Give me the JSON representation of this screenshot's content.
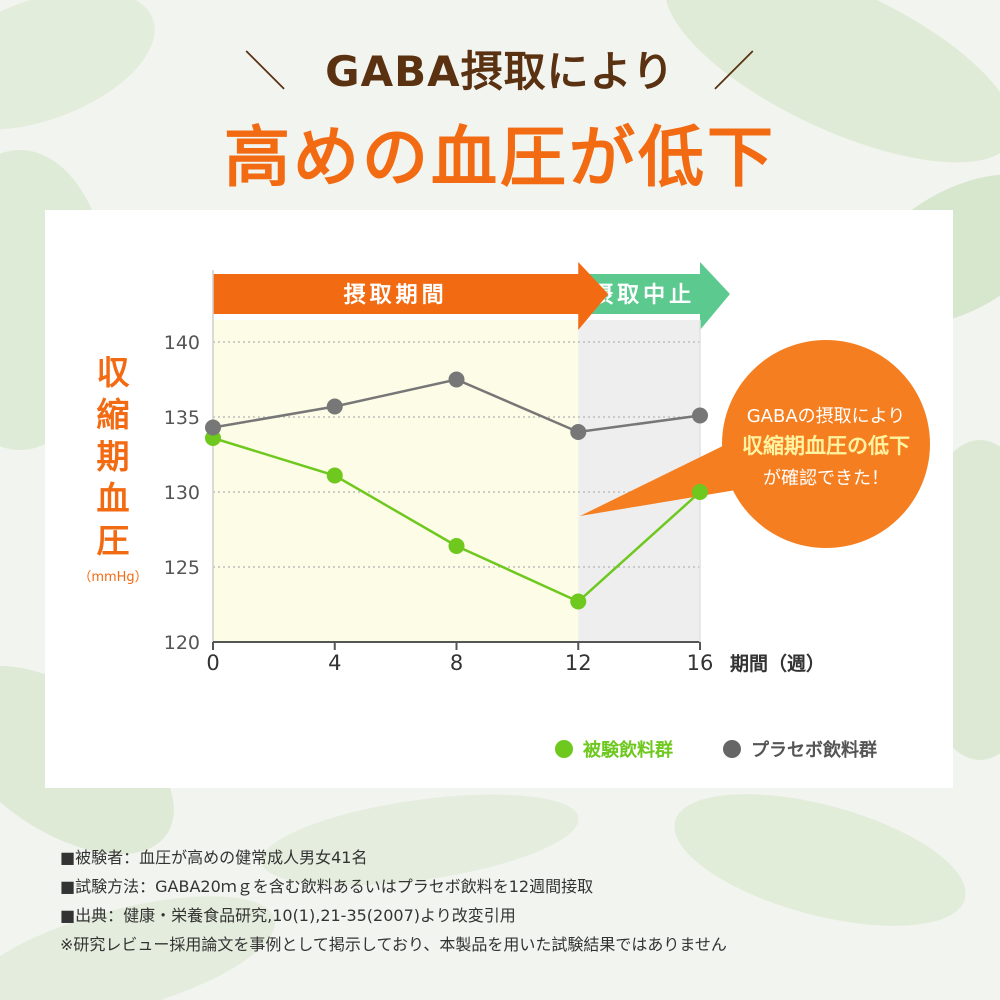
{
  "header": {
    "slash_left": "＼",
    "subtitle": "GABA摂取により",
    "slash_right": "／",
    "title": "高めの血圧が低下"
  },
  "chart_data": {
    "type": "line",
    "title": "",
    "ylabel": "収縮期血圧",
    "yunit": "（mmHg）",
    "xlabel": "期間（週）",
    "x": [
      0,
      4,
      8,
      12,
      16
    ],
    "xlim": [
      0,
      16
    ],
    "ylim": [
      120,
      140
    ],
    "yticks": [
      120,
      125,
      130,
      135,
      140
    ],
    "grid": "horizontal-dotted",
    "legend_position": "bottom-right",
    "phases": [
      {
        "label": "摂取期間",
        "from": 0,
        "to": 12,
        "color": "#f26a12",
        "shade": "#fdfce6"
      },
      {
        "label": "摂取中止",
        "from": 12,
        "to": 16,
        "color": "#5cc98f",
        "shade": "#eeeeee"
      }
    ],
    "series": [
      {
        "name": "被験飲料群",
        "color": "#6ec81e",
        "values": [
          133.6,
          131.1,
          126.4,
          122.7,
          130.0
        ]
      },
      {
        "name": "プラセボ飲料群",
        "color": "#777777",
        "values": [
          134.3,
          135.7,
          137.5,
          134.0,
          135.1
        ]
      }
    ]
  },
  "callout": {
    "line1": "GABAの摂取により",
    "line2": "収縮期血圧の低下",
    "line3": "が確認できた！"
  },
  "notes": [
    "■被験者：血圧が高めの健常成人男女41名",
    "■試験方法：GABA20ｍｇを含む飲料あるいはプラセボ飲料を12週間接取",
    "■出典：健康・栄養食品研究,10(1),21-35(2007)より改変引用",
    "※研究レビュー採用論文を事例として掲示しており、本製品を用いた試験結果ではありません"
  ],
  "colors": {
    "orange": "#f26a12",
    "brown": "#5a3212",
    "green": "#6ec81e",
    "teal": "#5cc98f",
    "gray": "#777777"
  }
}
